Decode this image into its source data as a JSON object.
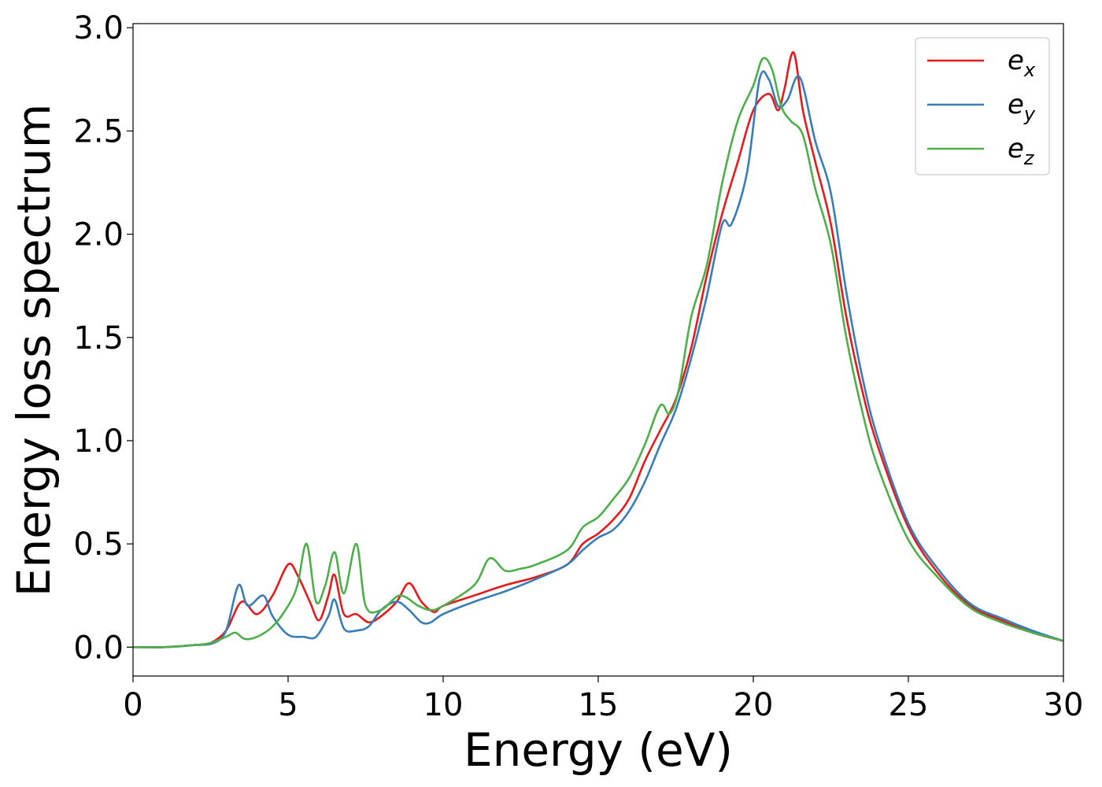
{
  "chart_data": {
    "type": "line",
    "xlabel": "Energy (eV)",
    "ylabel": "Energy loss spectrum",
    "xlim": [
      0,
      30
    ],
    "ylim": [
      -0.14,
      3.02
    ],
    "xticks": [
      0,
      5,
      10,
      15,
      20,
      25,
      30
    ],
    "xtick_labels": [
      "0",
      "5",
      "10",
      "15",
      "20",
      "25",
      "30"
    ],
    "yticks": [
      0.0,
      0.5,
      1.0,
      1.5,
      2.0,
      2.5,
      3.0
    ],
    "ytick_labels": [
      "0.0",
      "0.5",
      "1.0",
      "1.5",
      "2.0",
      "2.5",
      "3.0"
    ],
    "grid": false,
    "legend_position": "top-right",
    "series": [
      {
        "name": "e_x",
        "label_base": "e",
        "label_sub": "x",
        "color": "#e41a1c",
        "x": [
          0,
          1,
          2,
          2.5,
          3,
          3.5,
          4,
          4.5,
          5,
          5.3,
          5.7,
          6,
          6.3,
          6.5,
          6.8,
          7.2,
          7.6,
          8,
          8.5,
          8.9,
          9.3,
          9.7,
          10,
          11,
          12,
          13,
          14,
          14.5,
          15,
          15.5,
          16,
          16.5,
          17,
          17.5,
          18,
          18.5,
          19,
          19.5,
          20,
          20.5,
          20.8,
          21,
          21.3,
          21.6,
          22,
          22.5,
          23,
          23.5,
          24,
          25,
          26,
          27,
          28,
          29,
          30
        ],
        "y": [
          0.0,
          0.0,
          0.01,
          0.02,
          0.08,
          0.22,
          0.16,
          0.25,
          0.4,
          0.35,
          0.22,
          0.13,
          0.25,
          0.35,
          0.16,
          0.16,
          0.12,
          0.15,
          0.22,
          0.31,
          0.22,
          0.17,
          0.2,
          0.25,
          0.3,
          0.34,
          0.4,
          0.5,
          0.55,
          0.62,
          0.72,
          0.9,
          1.05,
          1.2,
          1.45,
          1.8,
          2.1,
          2.35,
          2.6,
          2.68,
          2.6,
          2.7,
          2.88,
          2.6,
          2.35,
          2.05,
          1.6,
          1.25,
          0.98,
          0.58,
          0.35,
          0.2,
          0.13,
          0.07,
          0.03
        ]
      },
      {
        "name": "e_y",
        "label_base": "e",
        "label_sub": "y",
        "color": "#377eb8",
        "x": [
          0,
          1,
          2,
          2.6,
          3,
          3.4,
          3.7,
          4.2,
          4.5,
          5,
          5.5,
          5.9,
          6.3,
          6.5,
          6.8,
          7.2,
          7.6,
          8,
          8.5,
          8.9,
          9.3,
          9.6,
          10,
          11,
          12,
          13,
          14,
          14.5,
          15,
          15.5,
          16,
          16.5,
          17,
          17.5,
          18,
          18.5,
          19,
          19.3,
          19.8,
          20.2,
          20.5,
          20.8,
          21.1,
          21.5,
          22,
          22.5,
          23,
          23.5,
          24,
          25,
          26,
          27,
          28,
          29,
          30
        ],
        "y": [
          0.0,
          0.0,
          0.01,
          0.02,
          0.08,
          0.3,
          0.2,
          0.25,
          0.15,
          0.06,
          0.05,
          0.05,
          0.15,
          0.23,
          0.09,
          0.08,
          0.1,
          0.18,
          0.22,
          0.18,
          0.12,
          0.12,
          0.16,
          0.22,
          0.27,
          0.33,
          0.4,
          0.47,
          0.53,
          0.57,
          0.66,
          0.8,
          0.98,
          1.15,
          1.4,
          1.7,
          2.05,
          2.05,
          2.3,
          2.75,
          2.75,
          2.62,
          2.65,
          2.76,
          2.45,
          2.2,
          1.72,
          1.32,
          1.02,
          0.6,
          0.37,
          0.21,
          0.14,
          0.08,
          0.03
        ]
      },
      {
        "name": "e_z",
        "label_base": "e",
        "label_sub": "z",
        "color": "#4daf4a",
        "x": [
          0,
          1,
          2,
          2.5,
          3,
          3.3,
          3.6,
          4,
          4.5,
          5,
          5.3,
          5.6,
          5.9,
          6.2,
          6.5,
          6.8,
          7.2,
          7.5,
          8,
          8.6,
          9.2,
          9.6,
          10,
          11,
          11.5,
          12,
          12.5,
          13,
          14,
          14.5,
          15,
          15.5,
          16,
          16.5,
          17,
          17.3,
          17.6,
          18,
          18.5,
          19,
          19.5,
          20,
          20.3,
          20.6,
          20.9,
          21.2,
          21.6,
          22,
          22.5,
          23,
          23.5,
          24,
          25,
          26,
          27,
          28,
          29,
          30
        ],
        "y": [
          0.0,
          0.0,
          0.01,
          0.02,
          0.05,
          0.07,
          0.04,
          0.05,
          0.1,
          0.2,
          0.3,
          0.5,
          0.22,
          0.3,
          0.46,
          0.26,
          0.5,
          0.2,
          0.18,
          0.25,
          0.2,
          0.18,
          0.2,
          0.3,
          0.43,
          0.37,
          0.38,
          0.4,
          0.47,
          0.58,
          0.63,
          0.72,
          0.82,
          0.98,
          1.17,
          1.13,
          1.25,
          1.6,
          1.85,
          2.25,
          2.55,
          2.72,
          2.85,
          2.8,
          2.62,
          2.55,
          2.48,
          2.22,
          1.95,
          1.5,
          1.15,
          0.88,
          0.52,
          0.33,
          0.19,
          0.12,
          0.07,
          0.03
        ]
      }
    ]
  }
}
